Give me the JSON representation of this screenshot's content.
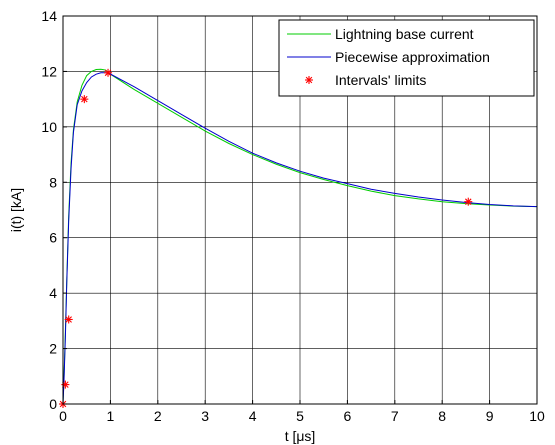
{
  "chart_data": {
    "type": "line",
    "title": "",
    "xlabel": "t [μs]",
    "ylabel": "i(t) [kA]",
    "xlim": [
      0,
      10
    ],
    "ylim": [
      0,
      14
    ],
    "xticks": [
      0,
      1,
      2,
      3,
      4,
      5,
      6,
      7,
      8,
      9,
      10
    ],
    "yticks": [
      0,
      2,
      4,
      6,
      8,
      10,
      12,
      14
    ],
    "grid": true,
    "legend_position": "top-right",
    "series": [
      {
        "name": "Lightning base current",
        "color": "#00cc00",
        "style": "line",
        "x": [
          0,
          0.02,
          0.05,
          0.08,
          0.12,
          0.17,
          0.22,
          0.3,
          0.4,
          0.5,
          0.6,
          0.7,
          0.8,
          0.9,
          1.0,
          1.5,
          2,
          2.5,
          3,
          3.5,
          4,
          4.5,
          5,
          5.5,
          6,
          6.5,
          7,
          7.5,
          8,
          8.5,
          9,
          9.5,
          10
        ],
        "y": [
          0,
          0.9,
          2.6,
          4.5,
          6.8,
          8.7,
          9.9,
          10.9,
          11.5,
          11.85,
          12.0,
          12.07,
          12.08,
          12.05,
          11.9,
          11.35,
          10.85,
          10.35,
          9.85,
          9.4,
          9.0,
          8.65,
          8.35,
          8.1,
          7.88,
          7.68,
          7.52,
          7.4,
          7.3,
          7.23,
          7.18,
          7.14,
          7.12
        ]
      },
      {
        "name": "Piecewise approximation",
        "color": "#0000cc",
        "style": "line",
        "x": [
          0,
          0.02,
          0.05,
          0.08,
          0.12,
          0.17,
          0.22,
          0.3,
          0.4,
          0.5,
          0.6,
          0.7,
          0.8,
          0.9,
          0.95,
          1.5,
          2,
          2.5,
          3,
          3.5,
          4,
          4.5,
          5,
          5.5,
          6,
          6.5,
          7,
          7.5,
          8,
          8.5,
          9,
          9.5,
          10
        ],
        "y": [
          0,
          0.8,
          2.4,
          4.4,
          6.6,
          8.5,
          9.8,
          10.8,
          11.3,
          11.6,
          11.8,
          11.9,
          11.95,
          11.95,
          11.95,
          11.45,
          10.95,
          10.45,
          9.95,
          9.48,
          9.05,
          8.7,
          8.4,
          8.15,
          7.95,
          7.75,
          7.6,
          7.47,
          7.36,
          7.27,
          7.2,
          7.15,
          7.12
        ]
      },
      {
        "name": "Intervals' limits",
        "color": "#ff0000",
        "style": "marker",
        "x": [
          0,
          0.05,
          0.12,
          0.45,
          0.95,
          8.55
        ],
        "y": [
          0,
          0.7,
          3.05,
          11.0,
          11.95,
          7.3
        ]
      }
    ]
  }
}
